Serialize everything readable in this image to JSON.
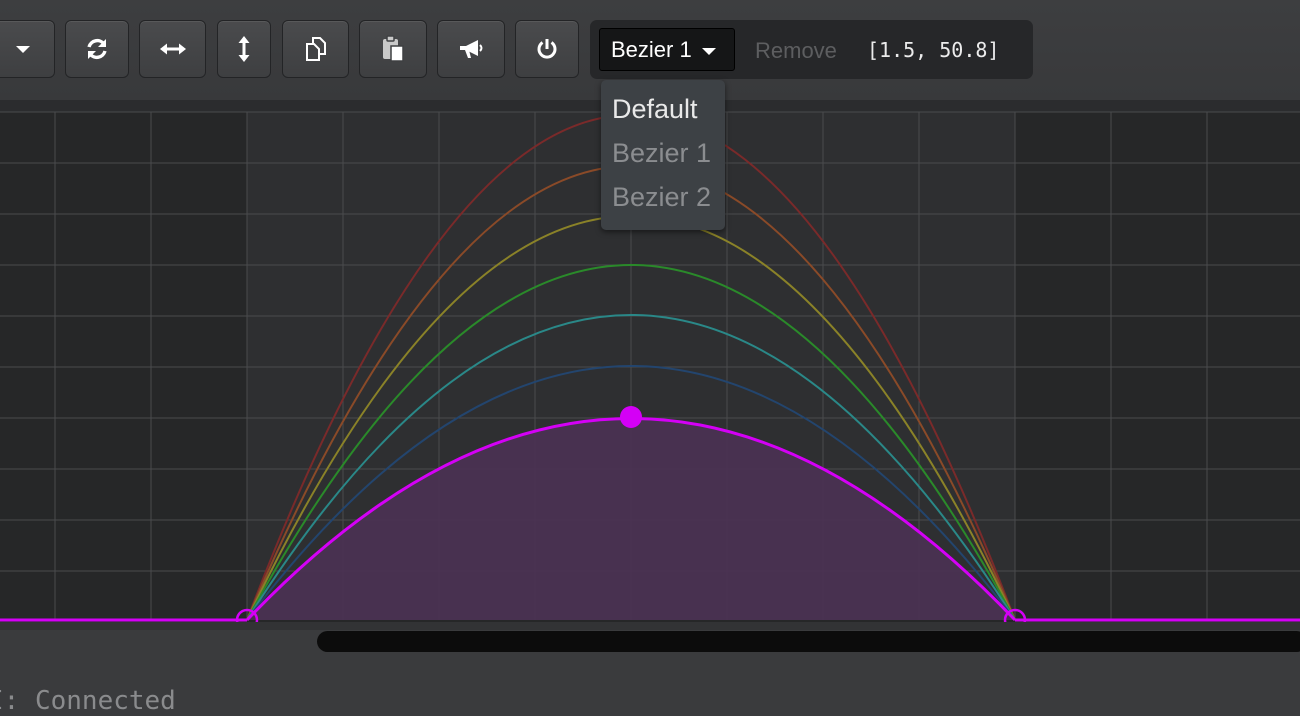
{
  "toolbar": {
    "buttons": [
      {
        "name": "dropdown-toggle",
        "icon": "caret-down-icon"
      },
      {
        "name": "refresh",
        "icon": "refresh-icon"
      },
      {
        "name": "stretch-horizontal",
        "icon": "arrows-horizontal-icon"
      },
      {
        "name": "stretch-vertical",
        "icon": "arrows-vertical-icon"
      },
      {
        "name": "copy",
        "icon": "copy-icon"
      },
      {
        "name": "paste",
        "icon": "paste-icon"
      },
      {
        "name": "announce",
        "icon": "megaphone-icon"
      },
      {
        "name": "power",
        "icon": "power-icon"
      }
    ]
  },
  "curve_panel": {
    "selected": "Bezier 1",
    "remove_label": "Remove",
    "coords": "[1.5, 50.8]"
  },
  "dropdown": {
    "options": [
      "Default",
      "Bezier 1",
      "Bezier 2"
    ],
    "active_index": 0
  },
  "graph": {
    "colors": {
      "background": "#262728",
      "active_region": "#2e2f31",
      "grid": "#4a4b4d",
      "active_curve": "#d400f6",
      "fill": "#4a3152"
    },
    "ghost_curves": [
      "#7a2a2a",
      "#8a4a28",
      "#8a8228",
      "#2a8a2a",
      "#2a8888",
      "#23456e"
    ]
  },
  "status": {
    "text": "I: Connected"
  }
}
